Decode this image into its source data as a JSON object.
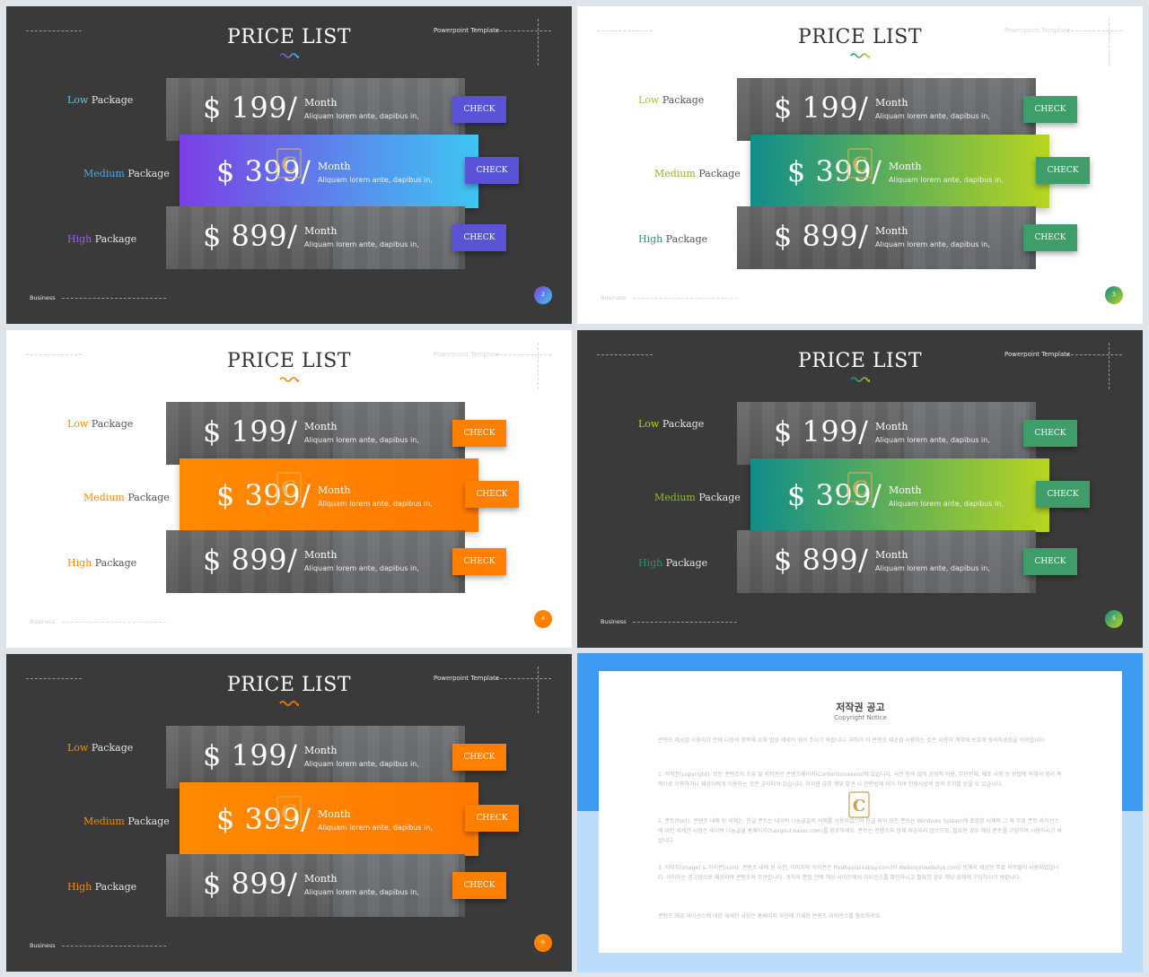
{
  "slides": [
    {
      "theme": "dark",
      "title": "PRICE LIST",
      "template_label": "Powerpoint Template",
      "footer_label": "Business",
      "page_number": "2",
      "accent_start": "#7b3fe4",
      "accent_end": "#3ec6f2",
      "check_color": "#5a53d6",
      "labels": [
        {
          "word": "Low",
          "suffix": "Package",
          "color": "#5fc2ef"
        },
        {
          "word": "Medium",
          "suffix": "Package",
          "color": "#4aa8f0"
        },
        {
          "word": "High",
          "suffix": "Package",
          "color": "#9a5cf3"
        }
      ],
      "rows": [
        {
          "price": "$ 199/",
          "month": "Month",
          "desc": "Aliquam lorem ante, dapibus in,",
          "check": "CHECK"
        },
        {
          "price": "$ 399/",
          "month": "Month",
          "desc": "Aliquam lorem ante, dapibus in,",
          "check": "CHECK"
        },
        {
          "price": "$ 899/",
          "month": "Month",
          "desc": "Aliquam lorem ante, dapibus in,",
          "check": "CHECK"
        }
      ]
    },
    {
      "theme": "light",
      "title": "PRICE LIST",
      "template_label": "Powerpoint Template",
      "footer_label": "Business",
      "page_number": "3",
      "accent_start": "#0f8d8a",
      "accent_end": "#b8d51f",
      "check_color": "#3f9d6a",
      "labels": [
        {
          "word": "Low",
          "suffix": "Package",
          "color": "#a8c61e"
        },
        {
          "word": "Medium",
          "suffix": "Package",
          "color": "#8fb52a"
        },
        {
          "word": "High",
          "suffix": "Package",
          "color": "#2f8e7a"
        }
      ],
      "rows": [
        {
          "price": "$ 199/",
          "month": "Month",
          "desc": "Aliquam lorem ante, dapibus in,",
          "check": "CHECK"
        },
        {
          "price": "$ 399/",
          "month": "Month",
          "desc": "Aliquam lorem ante, dapibus in,",
          "check": "CHECK"
        },
        {
          "price": "$ 899/",
          "month": "Month",
          "desc": "Aliquam lorem ante, dapibus in,",
          "check": "CHECK"
        }
      ]
    },
    {
      "theme": "light",
      "title": "PRICE LIST",
      "template_label": "Powerpoint Template",
      "footer_label": "Business",
      "page_number": "4",
      "accent_start": "#ff8a00",
      "accent_end": "#ff7a00",
      "check_color": "#ff7f00",
      "labels": [
        {
          "word": "Low",
          "suffix": "Package",
          "color": "#ff8a00"
        },
        {
          "word": "Medium",
          "suffix": "Package",
          "color": "#ff8a00"
        },
        {
          "word": "High",
          "suffix": "Package",
          "color": "#ff8a00"
        }
      ],
      "rows": [
        {
          "price": "$ 199/",
          "month": "Month",
          "desc": "Aliquam lorem ante, dapibus in,",
          "check": "CHECK"
        },
        {
          "price": "$ 399/",
          "month": "Month",
          "desc": "Aliquam lorem ante, dapibus in,",
          "check": "CHECK"
        },
        {
          "price": "$ 899/",
          "month": "Month",
          "desc": "Aliquam lorem ante, dapibus in,",
          "check": "CHECK"
        }
      ]
    },
    {
      "theme": "dark",
      "title": "PRICE LIST",
      "template_label": "Powerpoint Template",
      "footer_label": "Business",
      "page_number": "5",
      "accent_start": "#0f8d8a",
      "accent_end": "#b8d51f",
      "check_color": "#3f9d6a",
      "labels": [
        {
          "word": "Low",
          "suffix": "Package",
          "color": "#b5d21e"
        },
        {
          "word": "Medium",
          "suffix": "Package",
          "color": "#93bb2a"
        },
        {
          "word": "High",
          "suffix": "Package",
          "color": "#2f8e7a"
        }
      ],
      "rows": [
        {
          "price": "$ 199/",
          "month": "Month",
          "desc": "Aliquam lorem ante, dapibus in,",
          "check": "CHECK"
        },
        {
          "price": "$ 399/",
          "month": "Month",
          "desc": "Aliquam lorem ante, dapibus in,",
          "check": "CHECK"
        },
        {
          "price": "$ 899/",
          "month": "Month",
          "desc": "Aliquam lorem ante, dapibus in,",
          "check": "CHECK"
        }
      ]
    },
    {
      "theme": "dark",
      "title": "PRICE LIST",
      "template_label": "Powerpoint Template",
      "footer_label": "Business",
      "page_number": "6",
      "accent_start": "#ff8a00",
      "accent_end": "#ff7a00",
      "check_color": "#ff7f00",
      "labels": [
        {
          "word": "Low",
          "suffix": "Package",
          "color": "#ff8a00"
        },
        {
          "word": "Medium",
          "suffix": "Package",
          "color": "#ff8a00"
        },
        {
          "word": "High",
          "suffix": "Package",
          "color": "#ff8a00"
        }
      ],
      "rows": [
        {
          "price": "$ 199/",
          "month": "Month",
          "desc": "Aliquam lorem ante, dapibus in,",
          "check": "CHECK"
        },
        {
          "price": "$ 399/",
          "month": "Month",
          "desc": "Aliquam lorem ante, dapibus in,",
          "check": "CHECK"
        },
        {
          "price": "$ 899/",
          "month": "Month",
          "desc": "Aliquam lorem ante, dapibus in,",
          "check": "CHECK"
        }
      ]
    }
  ],
  "notice": {
    "title": "저작권 공고",
    "subtitle": "Copyright Notice",
    "paragraphs": [
      "콘텐츠 제공업 사용하기 전에 다음의 항목에 소해 법상 세세이 쉬어 주시기 바랍니다. 귀하가 이 콘텐츠 제공업 사용하는 것은 사용자 계약에 보호에 동의하셨음을 의미합니다.",
      "1. 저작권(copyright): 모든 콘텐츠의 소유 및 저작권은 콘텐츠메이커(Contentsmakers)에 있습니다. 사전 동의 없이 공업적 이용, 무단전재, 배포 사항 등 방법에 의해서 영리 목적으로 이용하거나 제삼자에게 이용하는 것은 금지되어 있습니다. 이러한 금지 행위 발견 시 관련법에 의거 하여 민형사상의 법적 조치를 받을 수 있습니다.",
      "2. 폰트(font): 콘텐츠 내에 된 서체는, 한글 폰트는 네이버 나눔글꼴의 서체를 사용하였으며 한글 외의 모든 폰트는 Windows System에 포함된 서체와 그 외 무료 폰트 라이선스에 대한 세세한 사항은 네이버 나눔글꼴 홈페이지(hangeul.naver.com)를 참조하세요. 폰트는 콘텐츠와 함께 제공되지 않으므로, 필요한 경우 해당 폰트를 구입하여 사용하시기 바랍니다.",
      "3. 이미지(image) & 아이콘(icon): 콘텐츠 내에 된 사진, 이미지와 아이콘은 Pixabay(pixabay.com)와 Webolys(webolys.com) 등에서 제공한 무료 저작물이 사용되었습니다. 이미지는 참고용으로 제공되며 콘텐츠와 무관합니다. 귀하의 편집 전에 해당 사이트에서 라이선스를 확인하시고 필요한 경우 해당 업체에 구입하시기 바랍니다.",
      "콘텐츠 제공 라이선스에 대한 세세한 사항은 홈페이지 하단에 기재된 콘텐츠 라이선스를 참조하세요."
    ]
  }
}
